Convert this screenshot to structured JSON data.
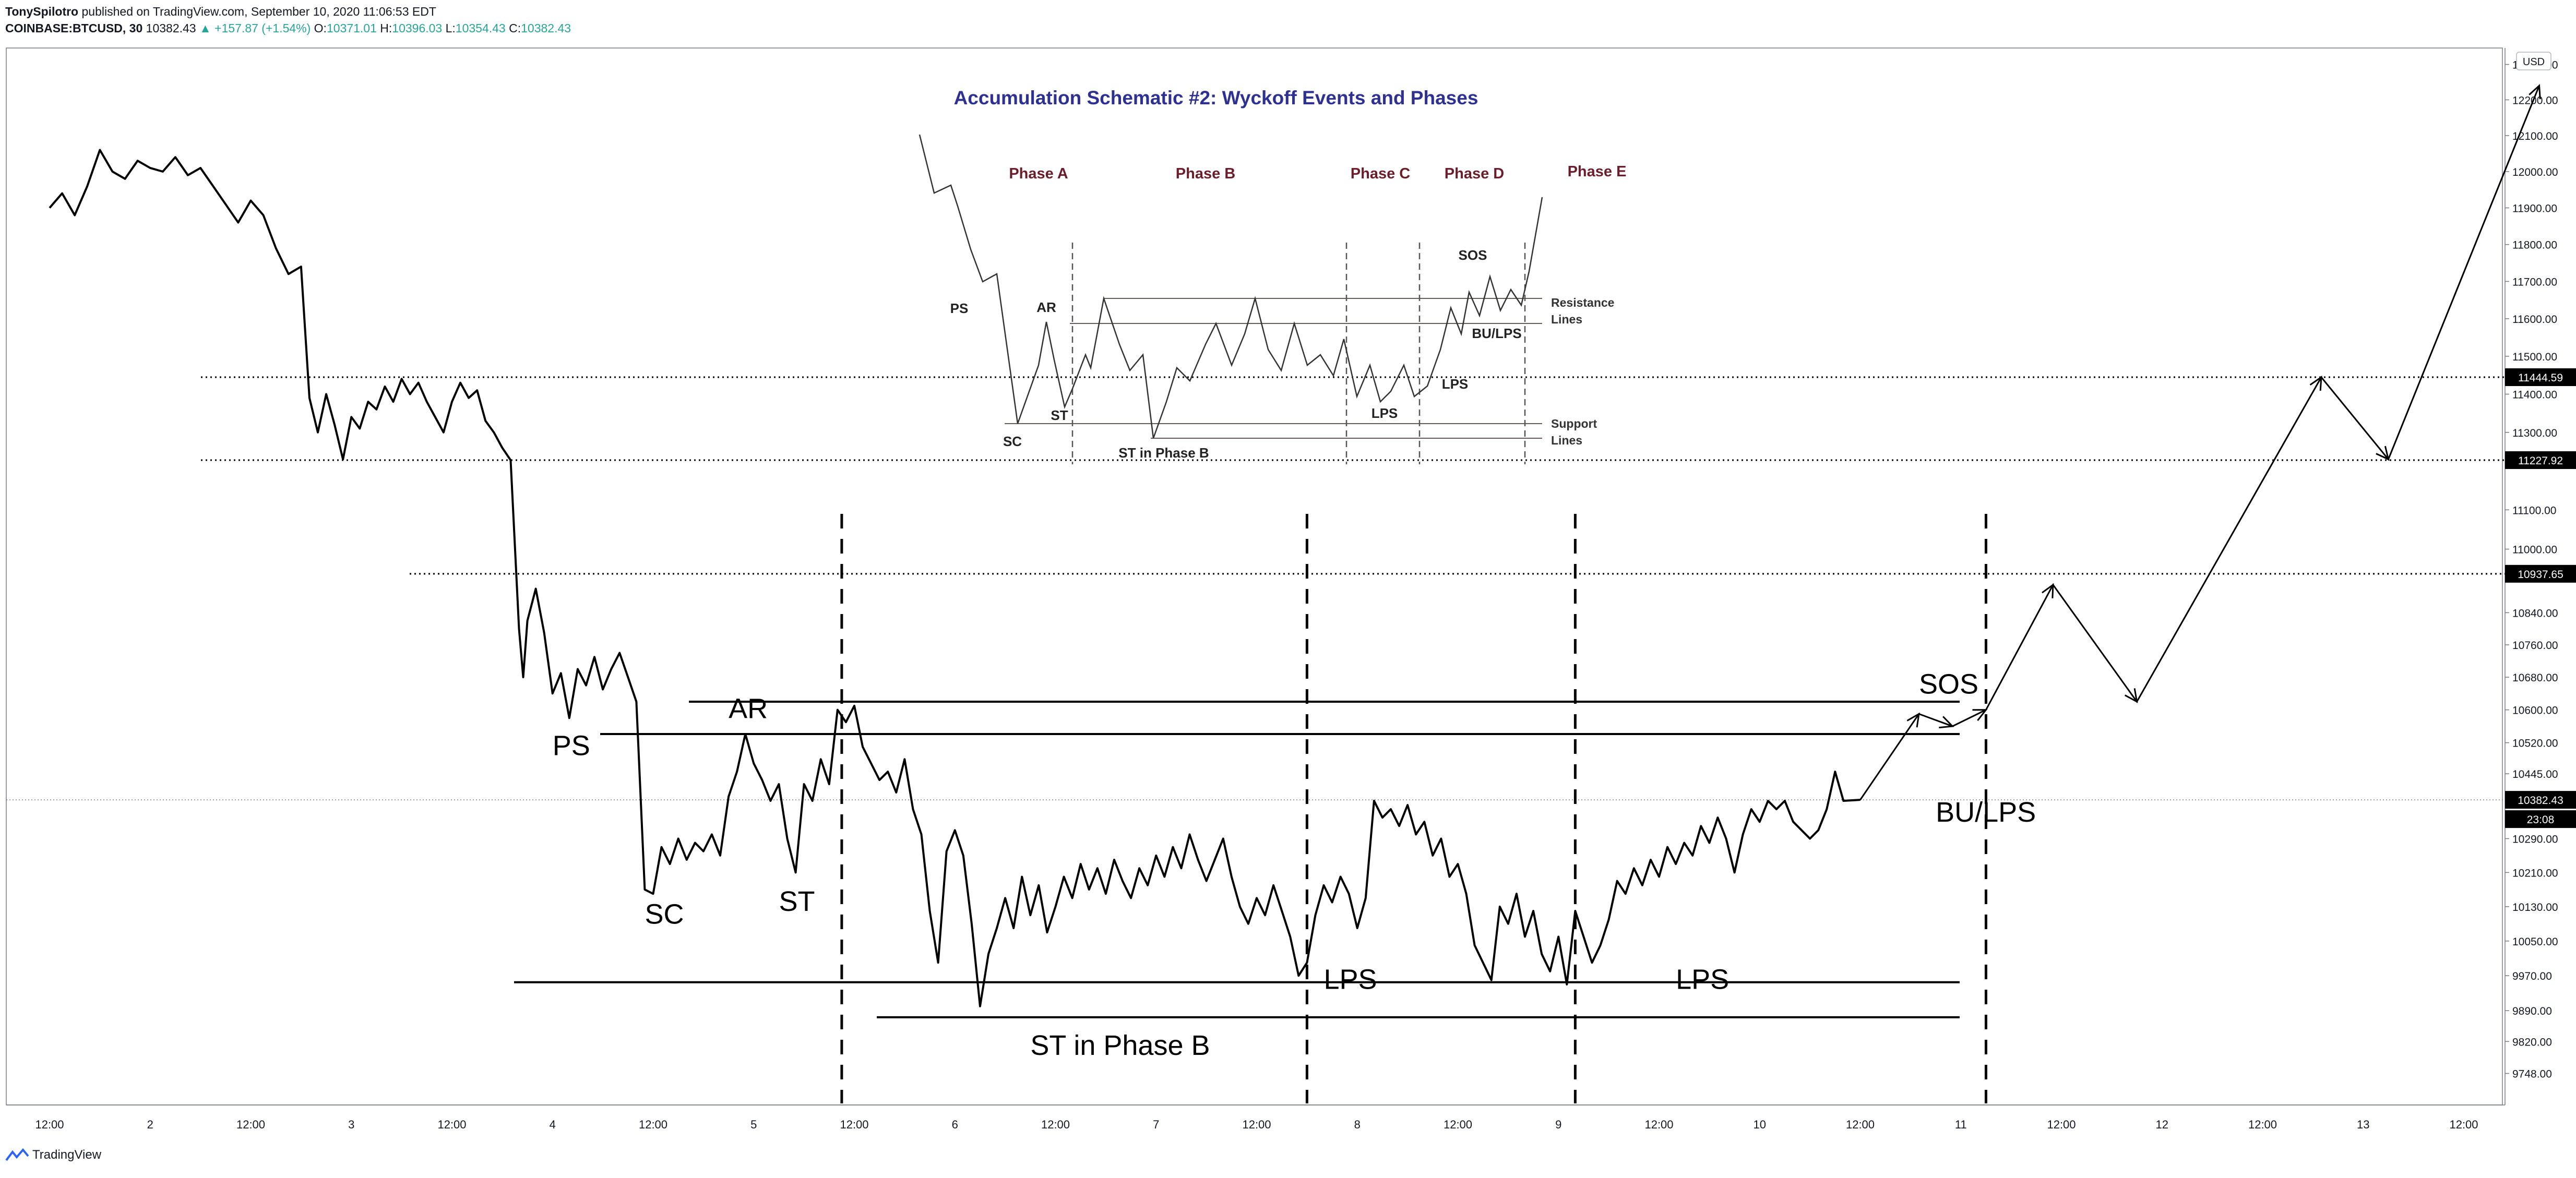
{
  "header": {
    "author": "TonySpilotro",
    "published_text": "published on TradingView.com, September 10, 2020 11:06:53 EDT",
    "symbol": "COINBASE:BTCUSD, 30",
    "last": "10382.43",
    "change": "+157.87 (+1.54%)",
    "o_label": "O:",
    "o_value": "10371.01",
    "h_label": "H:",
    "h_value": "10396.03",
    "l_label": "L:",
    "l_value": "10354.43",
    "c_label": "C:",
    "c_value": "10382.43",
    "change_arrow_icon": "triangle-up-icon"
  },
  "footer": {
    "brand": "TradingView",
    "logo_icon": "tradingview-logo-icon"
  },
  "colors": {
    "price_line": "#000000",
    "positive": "#26a69a",
    "title": "#2e3192",
    "phase": "#6b1d2a",
    "label_bg": "#000000"
  },
  "chart_data": {
    "type": "line",
    "symbol": "COINBASE:BTCUSD",
    "interval": "30",
    "currency": "USD",
    "ylim": [
      9710,
      12320
    ],
    "y_scale": "log",
    "y_ticks": [
      9748.0,
      9820.0,
      9890.0,
      9970.0,
      10050.0,
      10130.0,
      10210.0,
      10290.0,
      10382.43,
      10445.0,
      10520.0,
      10600.0,
      10680.0,
      10760.0,
      10840.0,
      10937.65,
      11000.0,
      11100.0,
      11227.92,
      11300.0,
      11400.0,
      11444.59,
      11500.0,
      11600.0,
      11700.0,
      11800.0,
      11900.0,
      12000.0,
      12100.0,
      12200.0,
      12300.0
    ],
    "x_ticks": [
      "12:00",
      "2",
      "12:00",
      "3",
      "12:00",
      "4",
      "12:00",
      "5",
      "12:00",
      "6",
      "12:00",
      "7",
      "12:00",
      "8",
      "12:00",
      "9",
      "12:00",
      "10",
      "12:00",
      "11",
      "12:00",
      "12",
      "12:00",
      "13",
      "12:00"
    ],
    "x_start": "Sep 1, 00:00",
    "x_end": "Sep 13, 14:00",
    "price_labels": [
      {
        "value": "11444.59",
        "style": "dark"
      },
      {
        "value": "11227.92",
        "style": "dark"
      },
      {
        "value": "10937.65",
        "style": "dark"
      },
      {
        "value": "10382.43",
        "style": "dark"
      },
      {
        "value": "23:08",
        "style": "dark"
      }
    ],
    "horizontal_levels": [
      11444.59,
      11227.92,
      10937.65
    ],
    "last_price": 10382.43,
    "series": [
      {
        "points": [
          [
            "Sep 1, 00:00",
            11900
          ],
          [
            "Sep 1, 01:30",
            11940
          ],
          [
            "Sep 1, 03:00",
            11880
          ],
          [
            "Sep 1, 04:30",
            11960
          ],
          [
            "Sep 1, 06:00",
            12060
          ],
          [
            "Sep 1, 07:30",
            12000
          ],
          [
            "Sep 1, 09:00",
            11980
          ],
          [
            "Sep 1, 10:30",
            12030
          ],
          [
            "Sep 1, 12:00",
            12010
          ],
          [
            "Sep 1, 13:30",
            12000
          ],
          [
            "Sep 1, 15:00",
            12040
          ],
          [
            "Sep 1, 16:30",
            11990
          ],
          [
            "Sep 1, 18:00",
            12010
          ],
          [
            "Sep 1, 19:30",
            11960
          ],
          [
            "Sep 1, 21:00",
            11910
          ],
          [
            "Sep 1, 22:30",
            11860
          ],
          [
            "Sep 2, 00:00",
            11920
          ],
          [
            "Sep 2, 01:30",
            11880
          ],
          [
            "Sep 2, 03:00",
            11790
          ],
          [
            "Sep 2, 04:30",
            11720
          ],
          [
            "Sep 2, 06:00",
            11740
          ],
          [
            "Sep 2, 07:00",
            11390
          ],
          [
            "Sep 2, 08:00",
            11300
          ],
          [
            "Sep 2, 09:00",
            11400
          ],
          [
            "Sep 2, 10:00",
            11320
          ],
          [
            "Sep 2, 11:00",
            11230
          ],
          [
            "Sep 2, 12:00",
            11340
          ],
          [
            "Sep 2, 13:00",
            11310
          ],
          [
            "Sep 2, 14:00",
            11380
          ],
          [
            "Sep 2, 15:00",
            11360
          ],
          [
            "Sep 2, 16:00",
            11420
          ],
          [
            "Sep 2, 17:00",
            11380
          ],
          [
            "Sep 2, 18:00",
            11440
          ],
          [
            "Sep 2, 19:00",
            11400
          ],
          [
            "Sep 2, 20:00",
            11430
          ],
          [
            "Sep 2, 21:00",
            11380
          ],
          [
            "Sep 2, 22:00",
            11340
          ],
          [
            "Sep 2, 23:00",
            11300
          ],
          [
            "Sep 3, 00:00",
            11380
          ],
          [
            "Sep 3, 01:00",
            11430
          ],
          [
            "Sep 3, 02:00",
            11390
          ],
          [
            "Sep 3, 03:00",
            11410
          ],
          [
            "Sep 3, 04:00",
            11330
          ],
          [
            "Sep 3, 05:00",
            11300
          ],
          [
            "Sep 3, 06:00",
            11260
          ],
          [
            "Sep 3, 07:00",
            11227.92
          ],
          [
            "Sep 3, 08:00",
            10800
          ],
          [
            "Sep 3, 08:30",
            10680
          ],
          [
            "Sep 3, 09:00",
            10820
          ],
          [
            "Sep 3, 10:00",
            10900
          ],
          [
            "Sep 3, 11:00",
            10790
          ],
          [
            "Sep 3, 12:00",
            10640
          ],
          [
            "Sep 3, 13:00",
            10690
          ],
          [
            "Sep 3, 14:00",
            10580
          ],
          [
            "Sep 3, 15:00",
            10700
          ],
          [
            "Sep 3, 16:00",
            10660
          ],
          [
            "Sep 3, 17:00",
            10730
          ],
          [
            "Sep 3, 18:00",
            10650
          ],
          [
            "Sep 3, 19:00",
            10700
          ],
          [
            "Sep 3, 20:00",
            10740
          ],
          [
            "Sep 3, 21:00",
            10680
          ],
          [
            "Sep 3, 22:00",
            10620
          ],
          [
            "Sep 3, 23:00",
            10170
          ],
          [
            "Sep 4, 00:00",
            10160
          ],
          [
            "Sep 4, 01:00",
            10270
          ],
          [
            "Sep 4, 02:00",
            10230
          ],
          [
            "Sep 4, 03:00",
            10290
          ],
          [
            "Sep 4, 04:00",
            10240
          ],
          [
            "Sep 4, 05:00",
            10280
          ],
          [
            "Sep 4, 06:00",
            10260
          ],
          [
            "Sep 4, 07:00",
            10300
          ],
          [
            "Sep 4, 08:00",
            10250
          ],
          [
            "Sep 4, 09:00",
            10390
          ],
          [
            "Sep 4, 10:00",
            10450
          ],
          [
            "Sep 4, 11:00",
            10541
          ],
          [
            "Sep 4, 12:00",
            10470
          ],
          [
            "Sep 4, 13:00",
            10430
          ],
          [
            "Sep 4, 14:00",
            10380
          ],
          [
            "Sep 4, 15:00",
            10420
          ],
          [
            "Sep 4, 16:00",
            10290
          ],
          [
            "Sep 4, 17:00",
            10210
          ],
          [
            "Sep 4, 18:00",
            10420
          ],
          [
            "Sep 4, 19:00",
            10380
          ],
          [
            "Sep 4, 20:00",
            10480
          ],
          [
            "Sep 4, 21:00",
            10420
          ],
          [
            "Sep 4, 22:00",
            10600
          ],
          [
            "Sep 4, 23:00",
            10570
          ],
          [
            "Sep 5, 00:00",
            10610
          ],
          [
            "Sep 5, 01:00",
            10510
          ],
          [
            "Sep 5, 02:00",
            10470
          ],
          [
            "Sep 5, 03:00",
            10430
          ],
          [
            "Sep 5, 04:00",
            10450
          ],
          [
            "Sep 5, 05:00",
            10400
          ],
          [
            "Sep 5, 06:00",
            10480
          ],
          [
            "Sep 5, 07:00",
            10360
          ],
          [
            "Sep 5, 08:00",
            10300
          ],
          [
            "Sep 5, 09:00",
            10120
          ],
          [
            "Sep 5, 10:00",
            10000
          ],
          [
            "Sep 5, 11:00",
            10260
          ],
          [
            "Sep 5, 12:00",
            10310
          ],
          [
            "Sep 5, 13:00",
            10250
          ],
          [
            "Sep 5, 14:00",
            10090
          ],
          [
            "Sep 5, 15:00",
            9900
          ],
          [
            "Sep 5, 16:00",
            10020
          ],
          [
            "Sep 5, 17:00",
            10080
          ],
          [
            "Sep 5, 18:00",
            10150
          ],
          [
            "Sep 5, 19:00",
            10080
          ],
          [
            "Sep 5, 20:00",
            10200
          ],
          [
            "Sep 5, 21:00",
            10110
          ],
          [
            "Sep 5, 22:00",
            10180
          ],
          [
            "Sep 5, 23:00",
            10070
          ],
          [
            "Sep 6, 00:00",
            10130
          ],
          [
            "Sep 6, 01:00",
            10200
          ],
          [
            "Sep 6, 02:00",
            10150
          ],
          [
            "Sep 6, 03:00",
            10230
          ],
          [
            "Sep 6, 04:00",
            10170
          ],
          [
            "Sep 6, 05:00",
            10220
          ],
          [
            "Sep 6, 06:00",
            10160
          ],
          [
            "Sep 6, 07:00",
            10240
          ],
          [
            "Sep 6, 08:00",
            10190
          ],
          [
            "Sep 6, 09:00",
            10150
          ],
          [
            "Sep 6, 10:00",
            10220
          ],
          [
            "Sep 6, 11:00",
            10180
          ],
          [
            "Sep 6, 12:00",
            10250
          ],
          [
            "Sep 6, 13:00",
            10200
          ],
          [
            "Sep 6, 14:00",
            10270
          ],
          [
            "Sep 6, 15:00",
            10220
          ],
          [
            "Sep 6, 16:00",
            10300
          ],
          [
            "Sep 6, 17:00",
            10240
          ],
          [
            "Sep 6, 18:00",
            10190
          ],
          [
            "Sep 6, 19:00",
            10240
          ],
          [
            "Sep 6, 20:00",
            10290
          ],
          [
            "Sep 6, 21:00",
            10200
          ],
          [
            "Sep 6, 22:00",
            10130
          ],
          [
            "Sep 6, 23:00",
            10090
          ],
          [
            "Sep 7, 00:00",
            10150
          ],
          [
            "Sep 7, 01:00",
            10110
          ],
          [
            "Sep 7, 02:00",
            10180
          ],
          [
            "Sep 7, 03:00",
            10120
          ],
          [
            "Sep 7, 04:00",
            10060
          ],
          [
            "Sep 7, 05:00",
            9970
          ],
          [
            "Sep 7, 06:00",
            10000
          ],
          [
            "Sep 7, 07:00",
            10110
          ],
          [
            "Sep 7, 08:00",
            10180
          ],
          [
            "Sep 7, 09:00",
            10140
          ],
          [
            "Sep 7, 10:00",
            10200
          ],
          [
            "Sep 7, 11:00",
            10160
          ],
          [
            "Sep 7, 12:00",
            10080
          ],
          [
            "Sep 7, 13:00",
            10150
          ],
          [
            "Sep 7, 14:00",
            10380
          ],
          [
            "Sep 7, 15:00",
            10340
          ],
          [
            "Sep 7, 16:00",
            10360
          ],
          [
            "Sep 7, 17:00",
            10320
          ],
          [
            "Sep 7, 18:00",
            10370
          ],
          [
            "Sep 7, 19:00",
            10300
          ],
          [
            "Sep 7, 20:00",
            10330
          ],
          [
            "Sep 7, 21:00",
            10250
          ],
          [
            "Sep 7, 22:00",
            10290
          ],
          [
            "Sep 7, 23:00",
            10200
          ],
          [
            "Sep 8, 00:00",
            10230
          ],
          [
            "Sep 8, 01:00",
            10160
          ],
          [
            "Sep 8, 02:00",
            10040
          ],
          [
            "Sep 8, 03:00",
            10000
          ],
          [
            "Sep 8, 04:00",
            9960
          ],
          [
            "Sep 8, 05:00",
            10130
          ],
          [
            "Sep 8, 06:00",
            10090
          ],
          [
            "Sep 8, 07:00",
            10160
          ],
          [
            "Sep 8, 08:00",
            10060
          ],
          [
            "Sep 8, 09:00",
            10120
          ],
          [
            "Sep 8, 10:00",
            10020
          ],
          [
            "Sep 8, 11:00",
            9980
          ],
          [
            "Sep 8, 12:00",
            10060
          ],
          [
            "Sep 8, 13:00",
            9950
          ],
          [
            "Sep 8, 14:00",
            10120
          ],
          [
            "Sep 8, 15:00",
            10060
          ],
          [
            "Sep 8, 16:00",
            10000
          ],
          [
            "Sep 8, 17:00",
            10040
          ],
          [
            "Sep 8, 18:00",
            10100
          ],
          [
            "Sep 8, 19:00",
            10190
          ],
          [
            "Sep 8, 20:00",
            10160
          ],
          [
            "Sep 8, 21:00",
            10220
          ],
          [
            "Sep 8, 22:00",
            10180
          ],
          [
            "Sep 8, 23:00",
            10240
          ],
          [
            "Sep 9, 00:00",
            10200
          ],
          [
            "Sep 9, 01:00",
            10270
          ],
          [
            "Sep 9, 02:00",
            10230
          ],
          [
            "Sep 9, 03:00",
            10280
          ],
          [
            "Sep 9, 04:00",
            10250
          ],
          [
            "Sep 9, 05:00",
            10320
          ],
          [
            "Sep 9, 06:00",
            10280
          ],
          [
            "Sep 9, 07:00",
            10340
          ],
          [
            "Sep 9, 08:00",
            10290
          ],
          [
            "Sep 9, 09:00",
            10210
          ],
          [
            "Sep 9, 10:00",
            10300
          ],
          [
            "Sep 9, 11:00",
            10360
          ],
          [
            "Sep 9, 12:00",
            10330
          ],
          [
            "Sep 9, 13:00",
            10380
          ],
          [
            "Sep 9, 14:00",
            10360
          ],
          [
            "Sep 9, 15:00",
            10380
          ],
          [
            "Sep 9, 16:00",
            10330
          ],
          [
            "Sep 9, 17:00",
            10310
          ],
          [
            "Sep 9, 18:00",
            10290
          ],
          [
            "Sep 9, 19:00",
            10310
          ],
          [
            "Sep 9, 20:00",
            10360
          ],
          [
            "Sep 9, 21:00",
            10450
          ],
          [
            "Sep 9, 22:00",
            10380
          ],
          [
            "Sep 10, 00:00",
            10382.43
          ]
        ]
      }
    ],
    "large_schematic": {
      "resistance_lines": [
        10620,
        10541
      ],
      "support_lines": [
        9955,
        9875
      ],
      "phase_dividers": [
        "Sep 4, 22:30",
        "Sep 7, 06:00",
        "Sep 8, 14:00",
        "Sep 10, 15:00"
      ],
      "projected_path": [
        [
          "Sep 10, 00:00",
          10382.43
        ],
        [
          "Sep 10, 07:00",
          10590
        ],
        [
          "Sep 10, 11:00",
          10560
        ],
        [
          "Sep 10, 15:00",
          10600
        ],
        [
          "Sep 10, 23:00",
          10910
        ],
        [
          "Sep 11, 09:00",
          10620
        ],
        [
          "Sep 12, 07:00",
          11444.59
        ],
        [
          "Sep 12, 15:00",
          11230
        ],
        [
          "Sep 13, 09:00",
          12240
        ]
      ],
      "labels": [
        {
          "text": "PS",
          "x": "Sep 3, 12:00",
          "y": 10490
        },
        {
          "text": "AR",
          "x": "Sep 4, 09:00",
          "y": 10580
        },
        {
          "text": "SC",
          "x": "Sep 3, 23:00",
          "y": 10090
        },
        {
          "text": "ST",
          "x": "Sep 4, 15:00",
          "y": 10120
        },
        {
          "text": "ST in Phase B",
          "x": "Sep 5, 21:00",
          "y": 9790
        },
        {
          "text": "LPS",
          "x": "Sep 7, 08:00",
          "y": 9940
        },
        {
          "text": "LPS",
          "x": "Sep 9, 02:00",
          "y": 9940
        },
        {
          "text": "SOS",
          "x": "Sep 10, 07:00",
          "y": 10640
        },
        {
          "text": "BU/LPS",
          "x": "Sep 10, 09:00",
          "y": 10330
        }
      ]
    },
    "schematic_inset": {
      "title": "Accumulation Schematic #2: Wyckoff Events and Phases",
      "phases": [
        "Phase A",
        "Phase B",
        "Phase C",
        "Phase D",
        "Phase E"
      ],
      "events": [
        "PS",
        "AR",
        "SC",
        "ST",
        "ST in Phase B",
        "LPS",
        "LPS",
        "SOS",
        "BU/LPS"
      ],
      "line_labels": [
        "Resistance",
        "Lines",
        "Support",
        "Lines"
      ]
    }
  }
}
